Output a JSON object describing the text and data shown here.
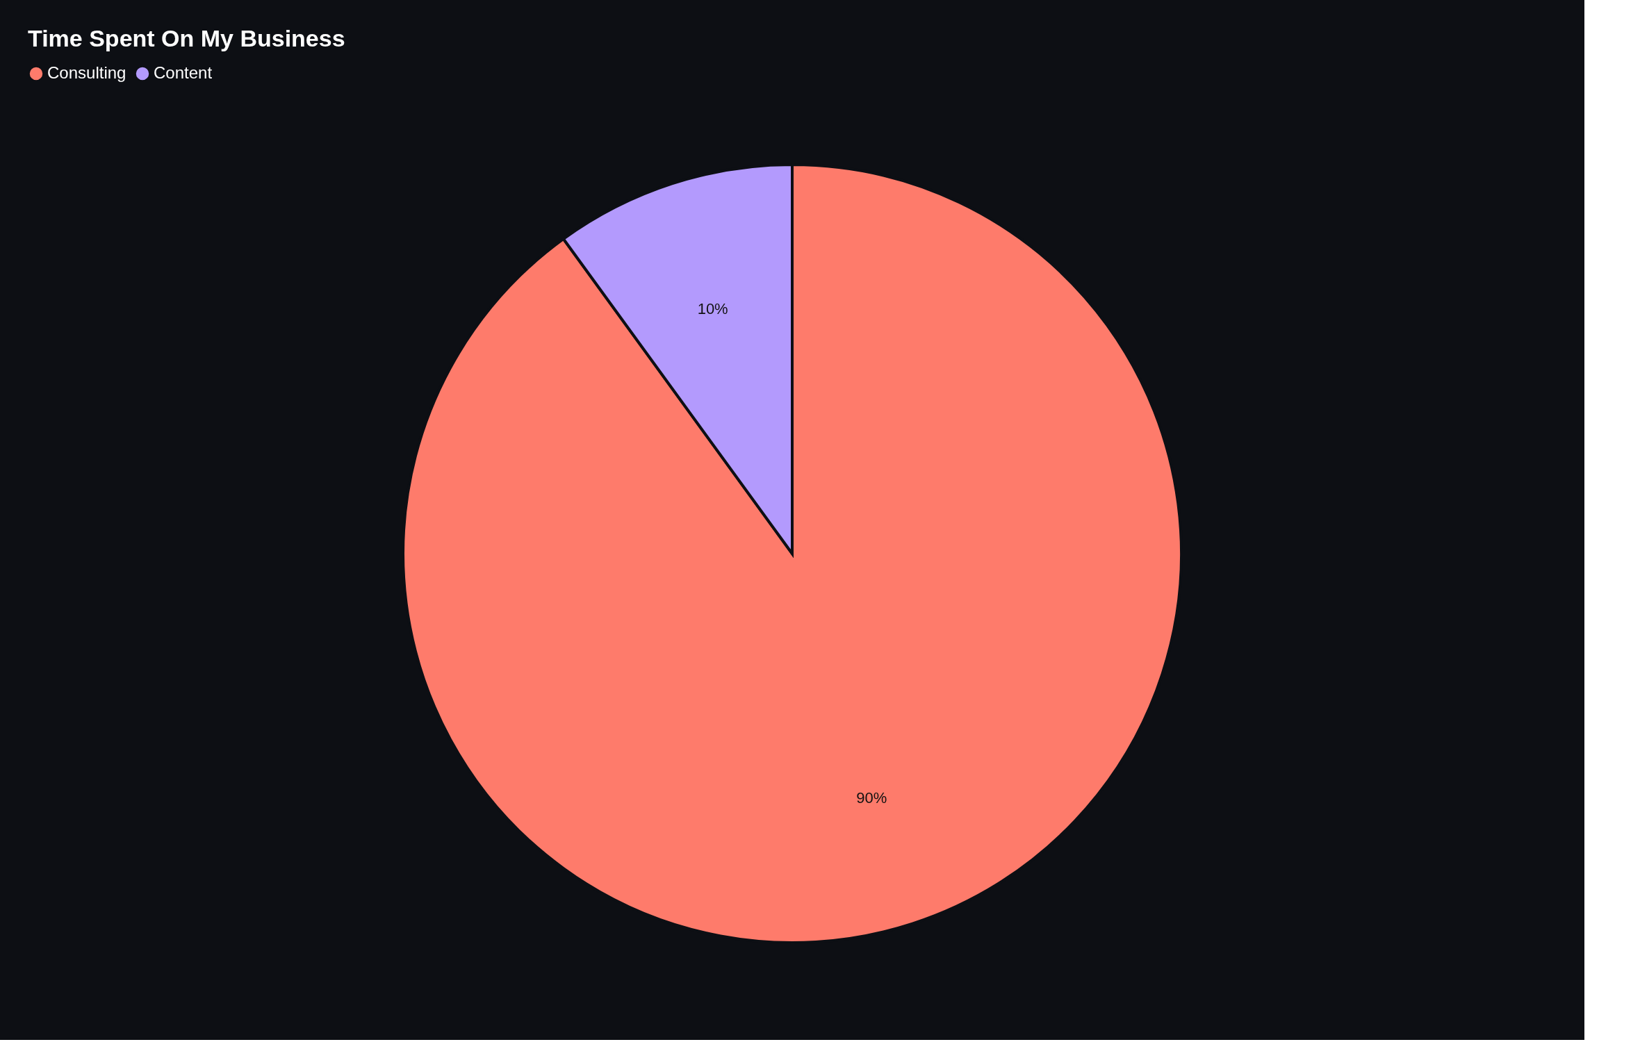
{
  "chart_data": {
    "type": "pie",
    "title": "Time Spent On My Business",
    "categories": [
      "Consulting",
      "Content"
    ],
    "values": [
      90,
      10
    ],
    "colors": [
      "#fe7b6b",
      "#b39afd"
    ],
    "value_labels": [
      "90%",
      "10%"
    ],
    "legend": "top"
  }
}
